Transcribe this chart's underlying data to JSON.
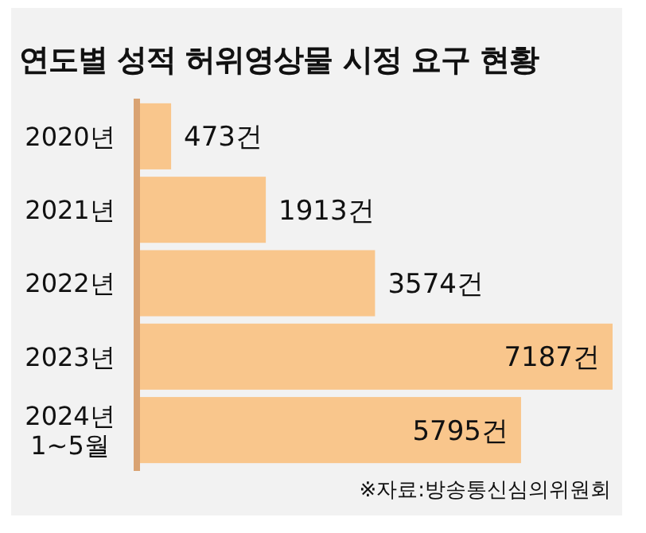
{
  "chart_data": {
    "type": "bar",
    "orientation": "horizontal",
    "title": "연도별 성적 허위영상물 시정 요구 현황",
    "categories": [
      "2020년",
      "2021년",
      "2022년",
      "2023년",
      "2024년\n1~5월"
    ],
    "values": [
      473,
      1913,
      3574,
      7187,
      5795
    ],
    "value_labels": [
      "473건",
      "1913건",
      "3574건",
      "7187건",
      "5795건"
    ],
    "color": "#f9c68c",
    "annotations": [
      "※자료:방송통신심의위원회"
    ]
  }
}
